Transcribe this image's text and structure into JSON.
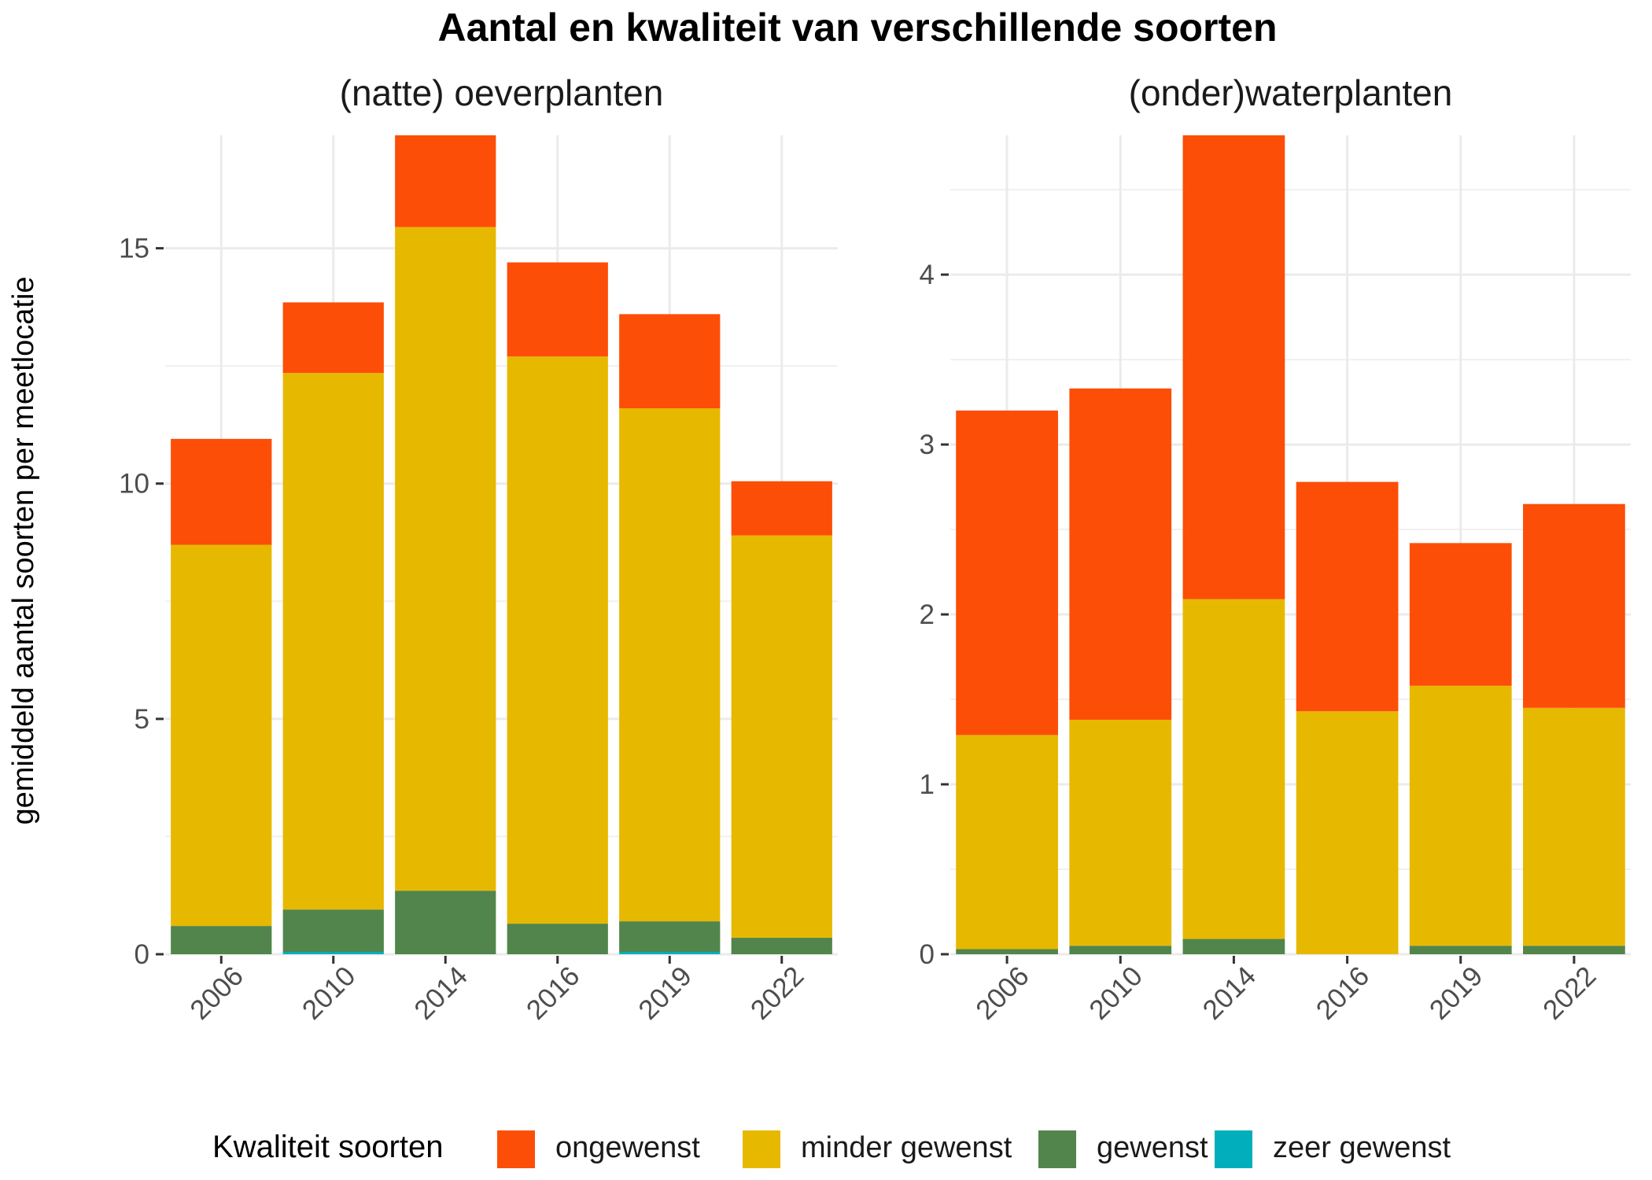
{
  "chart_data": {
    "type": "bar",
    "stacked": true,
    "title": "Aantal en kwaliteit van verschillende soorten",
    "ylabel": "gemiddeld aantal soorten per meetlocatie",
    "grid": true,
    "legend": {
      "title": "Kwaliteit soorten",
      "position": "bottom",
      "entries": [
        {
          "name": "ongewenst",
          "color": "#FC4E07"
        },
        {
          "name": "minder gewenst",
          "color": "#E7B800"
        },
        {
          "name": "gewenst",
          "color": "#52854C"
        },
        {
          "name": "zeer gewenst",
          "color": "#00AFBB"
        }
      ]
    },
    "panels": [
      {
        "title": "(natte) oeverplanten",
        "categories": [
          "2006",
          "2010",
          "2014",
          "2016",
          "2019",
          "2022"
        ],
        "ylim": [
          0,
          17.4
        ],
        "yticks": [
          0,
          5,
          10,
          15
        ],
        "series": [
          {
            "name": "zeer gewenst",
            "color": "#00AFBB",
            "values": [
              0,
              0.05,
              0,
              0,
              0.05,
              0
            ]
          },
          {
            "name": "gewenst",
            "color": "#52854C",
            "values": [
              0.6,
              0.9,
              1.35,
              0.65,
              0.65,
              0.35
            ]
          },
          {
            "name": "minder gewenst",
            "color": "#E7B800",
            "values": [
              8.1,
              11.4,
              14.1,
              12.05,
              10.9,
              8.55
            ]
          },
          {
            "name": "ongewenst",
            "color": "#FC4E07",
            "values": [
              2.25,
              1.5,
              1.95,
              2.0,
              2.0,
              1.15
            ]
          }
        ]
      },
      {
        "title": "(onder)waterplanten",
        "categories": [
          "2006",
          "2010",
          "2014",
          "2016",
          "2019",
          "2022"
        ],
        "ylim": [
          0,
          4.82
        ],
        "yticks": [
          0,
          1,
          2,
          3,
          4
        ],
        "series": [
          {
            "name": "zeer gewenst",
            "color": "#00AFBB",
            "values": [
              0,
              0,
              0,
              0,
              0,
              0
            ]
          },
          {
            "name": "gewenst",
            "color": "#52854C",
            "values": [
              0.03,
              0.05,
              0.09,
              0,
              0.05,
              0.05
            ]
          },
          {
            "name": "minder gewenst",
            "color": "#E7B800",
            "values": [
              1.26,
              1.33,
              2.0,
              1.43,
              1.53,
              1.4
            ]
          },
          {
            "name": "ongewenst",
            "color": "#FC4E07",
            "values": [
              1.91,
              1.95,
              2.73,
              1.35,
              0.84,
              1.2
            ]
          }
        ]
      }
    ]
  }
}
